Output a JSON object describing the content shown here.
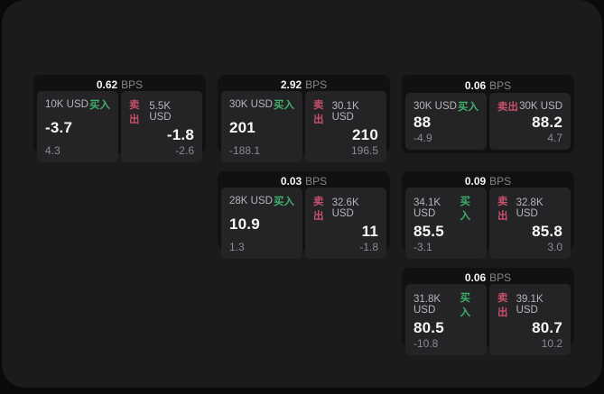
{
  "labels": {
    "bps_unit": "BPS",
    "buy": "买入",
    "sell": "卖出"
  },
  "colors": {
    "buy_green": "#3fb06a",
    "sell_red": "#c74f6a",
    "window_background": "#1b1b1c",
    "card_background": "#111112",
    "subpanel_background": "#242427"
  },
  "cards": [
    {
      "bps": "0.62",
      "buy": {
        "amount": "10K USD",
        "price": "-3.7",
        "change": "4.3"
      },
      "sell": {
        "amount": "5.5K USD",
        "price": "-1.8",
        "change": "-2.6"
      }
    },
    {
      "bps": "2.92",
      "buy": {
        "amount": "30K USD",
        "price": "201",
        "change": "-188.1"
      },
      "sell": {
        "amount": "30.1K USD",
        "price": "210",
        "change": "196.5"
      }
    },
    {
      "bps": "0.06",
      "buy": {
        "amount": "30K USD",
        "price": "88",
        "change": "-4.9"
      },
      "sell": {
        "amount": "30K USD",
        "price": "88.2",
        "change": "4.7"
      }
    },
    {
      "bps": "0.03",
      "buy": {
        "amount": "28K USD",
        "price": "10.9",
        "change": "1.3"
      },
      "sell": {
        "amount": "32.6K USD",
        "price": "11",
        "change": "-1.8"
      }
    },
    {
      "bps": "0.09",
      "buy": {
        "amount": "34.1K USD",
        "price": "85.5",
        "change": "-3.1"
      },
      "sell": {
        "amount": "32.8K USD",
        "price": "85.8",
        "change": "3.0"
      }
    },
    {
      "bps": "0.06",
      "buy": {
        "amount": "31.8K USD",
        "price": "80.5",
        "change": "-10.8"
      },
      "sell": {
        "amount": "39.1K USD",
        "price": "80.7",
        "change": "10.2"
      }
    }
  ]
}
